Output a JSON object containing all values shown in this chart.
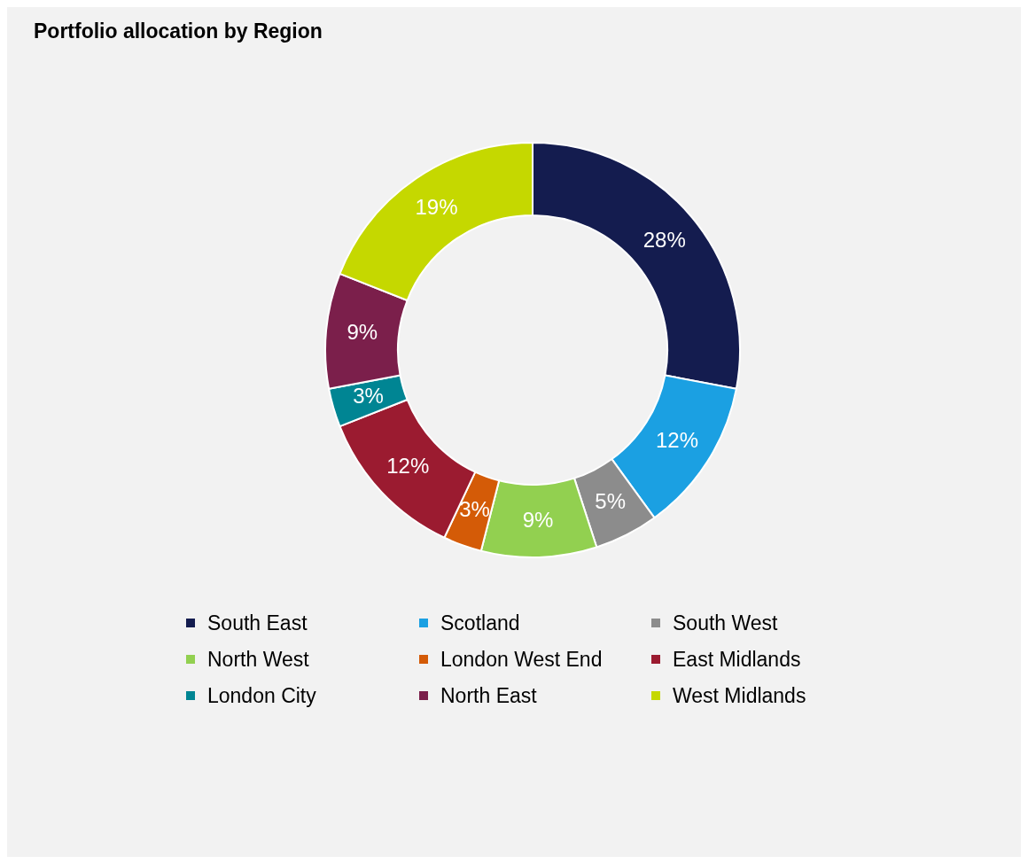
{
  "chart_data": {
    "type": "donut",
    "title": "Portfolio allocation by Region",
    "categories": [
      "South East",
      "Scotland",
      "South West",
      "North West",
      "London West End",
      "East Midlands",
      "London City",
      "North East",
      "West Midlands"
    ],
    "values": [
      28,
      12,
      5,
      9,
      3,
      12,
      3,
      9,
      19
    ],
    "value_labels": [
      "28%",
      "12%",
      "5%",
      "9%",
      "3%",
      "12%",
      "3%",
      "9%",
      "19%"
    ],
    "colors": [
      "#141c4f",
      "#1ba0e2",
      "#8c8c8c",
      "#92d050",
      "#d45b07",
      "#9b1b30",
      "#008593",
      "#7b1f4b",
      "#c5d800"
    ],
    "legend": "bottom"
  }
}
